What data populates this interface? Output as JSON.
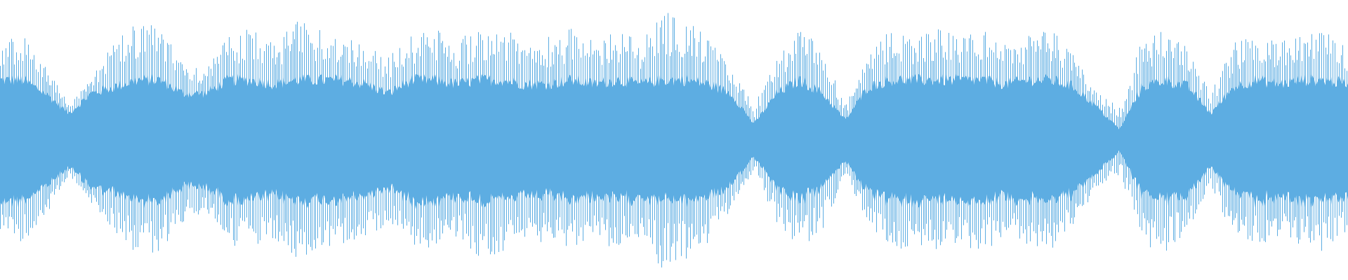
{
  "chart_data": {
    "type": "area",
    "title": "",
    "xlabel": "",
    "ylabel": "",
    "ylim": [
      -1,
      1
    ],
    "grid": false,
    "legend": "none",
    "color": "#5dade2",
    "envelope_peak": [
      0.7,
      0.75,
      0.55,
      0.25,
      0.45,
      0.7,
      0.85,
      0.8,
      0.6,
      0.5,
      0.75,
      0.8,
      0.7,
      0.85,
      0.8,
      0.75,
      0.7,
      0.6,
      0.75,
      0.8,
      0.7,
      0.85,
      0.8,
      0.7,
      0.75,
      0.8,
      0.7,
      0.8,
      0.7,
      0.95,
      0.85,
      0.75,
      0.5,
      0.25,
      0.6,
      0.8,
      0.65,
      0.25,
      0.6,
      0.8,
      0.75,
      0.8,
      0.75,
      0.8,
      0.7,
      0.75,
      0.8,
      0.6,
      0.35,
      0.25,
      0.75,
      0.8,
      0.65,
      0.35,
      0.7,
      0.75,
      0.7,
      0.75,
      0.8,
      0.65
    ],
    "envelope_body": [
      0.45,
      0.45,
      0.35,
      0.2,
      0.35,
      0.4,
      0.45,
      0.45,
      0.35,
      0.35,
      0.45,
      0.45,
      0.42,
      0.45,
      0.45,
      0.45,
      0.42,
      0.35,
      0.45,
      0.45,
      0.42,
      0.45,
      0.45,
      0.42,
      0.42,
      0.45,
      0.42,
      0.45,
      0.42,
      0.45,
      0.45,
      0.42,
      0.35,
      0.12,
      0.35,
      0.45,
      0.35,
      0.15,
      0.4,
      0.45,
      0.45,
      0.45,
      0.45,
      0.45,
      0.42,
      0.45,
      0.45,
      0.4,
      0.25,
      0.08,
      0.4,
      0.45,
      0.4,
      0.2,
      0.4,
      0.45,
      0.42,
      0.45,
      0.45,
      0.42
    ]
  }
}
